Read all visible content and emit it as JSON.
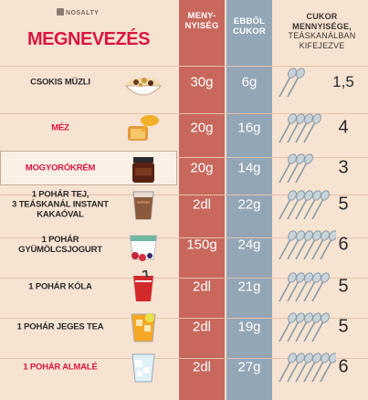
{
  "logo": "NOSALTY",
  "header": {
    "name": "MEGNEVEZÉS",
    "quantity": "MENY-\nNYISÉG",
    "sugar": "EBBŐL\nCUKOR",
    "spoons_title": "CUKOR\nMENNYISÉGE,",
    "spoons_sub": "TEÁSKANÁLBAN\nKIFEJEZVE"
  },
  "colors": {
    "title": "#d9163d",
    "quantity_col": "#c8685c",
    "sugar_col": "#93a6b5",
    "background": "#f7e3d2"
  },
  "rows": [
    {
      "name": "CSOKIS MÜZLI",
      "quantity": "30g",
      "sugar": "6g",
      "spoons": "1,5",
      "spoon_count": 1.5,
      "icon": "muesli-bowl-icon"
    },
    {
      "name": "MÉZ",
      "quantity": "20g",
      "sugar": "16g",
      "spoons": "4",
      "spoon_count": 4,
      "icon": "honey-toast-icon"
    },
    {
      "name": "MOGYORÓKRÉM",
      "quantity": "20g",
      "sugar": "14g",
      "spoons": "3",
      "spoon_count": 3,
      "icon": "hazelnut-cream-jar-icon"
    },
    {
      "name": "1 POHÁR TEJ,\n3 TEÁSKANÁL INSTANT\nKAKAÓVAL",
      "quantity": "2dl",
      "sugar": "22g",
      "spoons": "5",
      "spoon_count": 5,
      "icon": "cocoa-glass-icon"
    },
    {
      "name": "1 POHÁR\nGYÜMÖLCSJOGURT",
      "quantity": "150g",
      "sugar": "24g",
      "spoons": "6",
      "spoon_count": 6,
      "icon": "fruit-yogurt-icon"
    },
    {
      "name": "1 POHÁR KÓLA",
      "quantity": "2dl",
      "sugar": "21g",
      "spoons": "5",
      "spoon_count": 5,
      "icon": "cola-cup-icon"
    },
    {
      "name": "1 POHÁR JEGES TEA",
      "quantity": "2dl",
      "sugar": "19g",
      "spoons": "5",
      "spoon_count": 5,
      "icon": "iced-tea-glass-icon"
    },
    {
      "name": "1 POHÁR ALMALÉ",
      "quantity": "2dl",
      "sugar": "27g",
      "spoons": "6",
      "spoon_count": 6,
      "icon": "apple-juice-glass-icon"
    }
  ]
}
